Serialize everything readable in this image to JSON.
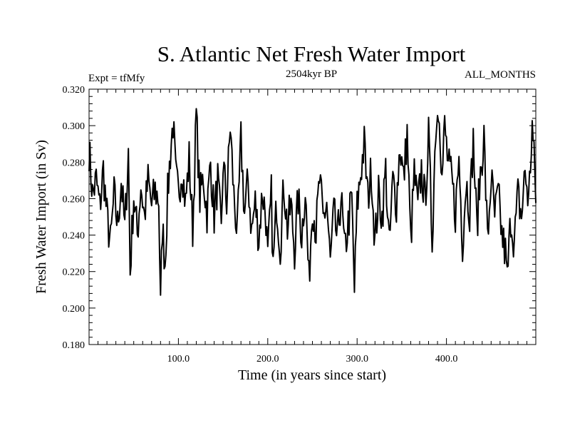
{
  "chart_data": {
    "type": "line",
    "title": "S. Atlantic Net Fresh Water Import",
    "subtitle": "2504kyr BP",
    "left_note": "Expt = tfMfy",
    "right_note": "ALL_MONTHS",
    "xlabel": "Time (in years since start)",
    "ylabel": "Fresh Water Import (in Sv)",
    "xlim": [
      0,
      500
    ],
    "ylim": [
      0.18,
      0.32
    ],
    "xticks": [
      100,
      200,
      300,
      400
    ],
    "xtick_labels": [
      "100.0",
      "200.0",
      "300.0",
      "400.0"
    ],
    "yticks": [
      0.18,
      0.2,
      0.22,
      0.24,
      0.26,
      0.28,
      0.3,
      0.32
    ],
    "ytick_labels": [
      "0.180",
      "0.200",
      "0.220",
      "0.240",
      "0.260",
      "0.280",
      "0.300",
      "0.320"
    ],
    "grid": false,
    "series": [
      {
        "name": "Net Fresh Water Import",
        "color": "#000000",
        "anchors": [
          [
            0,
            0.287
          ],
          [
            4,
            0.262
          ],
          [
            8,
            0.27
          ],
          [
            12,
            0.255
          ],
          [
            16,
            0.276
          ],
          [
            20,
            0.25
          ],
          [
            24,
            0.235
          ],
          [
            28,
            0.262
          ],
          [
            32,
            0.245
          ],
          [
            36,
            0.27
          ],
          [
            40,
            0.243
          ],
          [
            44,
            0.286
          ],
          [
            46,
            0.22
          ],
          [
            50,
            0.262
          ],
          [
            54,
            0.24
          ],
          [
            58,
            0.268
          ],
          [
            62,
            0.25
          ],
          [
            66,
            0.27
          ],
          [
            70,
            0.256
          ],
          [
            74,
            0.264
          ],
          [
            78,
            0.26
          ],
          [
            80,
            0.2
          ],
          [
            82,
            0.245
          ],
          [
            85,
            0.225
          ],
          [
            88,
            0.262
          ],
          [
            91,
            0.285
          ],
          [
            94,
            0.302
          ],
          [
            97,
            0.272
          ],
          [
            100,
            0.262
          ],
          [
            104,
            0.278
          ],
          [
            108,
            0.257
          ],
          [
            112,
            0.282
          ],
          [
            116,
            0.243
          ],
          [
            120,
            0.306
          ],
          [
            124,
            0.26
          ],
          [
            128,
            0.272
          ],
          [
            132,
            0.252
          ],
          [
            136,
            0.28
          ],
          [
            140,
            0.25
          ],
          [
            144,
            0.27
          ],
          [
            148,
            0.24
          ],
          [
            150,
            0.28
          ],
          [
            154,
            0.258
          ],
          [
            158,
            0.3
          ],
          [
            162,
            0.262
          ],
          [
            166,
            0.24
          ],
          [
            170,
            0.292
          ],
          [
            174,
            0.252
          ],
          [
            178,
            0.27
          ],
          [
            182,
            0.242
          ],
          [
            186,
            0.258
          ],
          [
            190,
            0.238
          ],
          [
            194,
            0.264
          ],
          [
            198,
            0.25
          ],
          [
            200,
            0.226
          ],
          [
            204,
            0.262
          ],
          [
            206,
            0.222
          ],
          [
            210,
            0.258
          ],
          [
            214,
            0.234
          ],
          [
            218,
            0.268
          ],
          [
            222,
            0.244
          ],
          [
            226,
            0.256
          ],
          [
            230,
            0.232
          ],
          [
            234,
            0.26
          ],
          [
            238,
            0.24
          ],
          [
            242,
            0.266
          ],
          [
            246,
            0.214
          ],
          [
            250,
            0.258
          ],
          [
            254,
            0.242
          ],
          [
            258,
            0.27
          ],
          [
            262,
            0.248
          ],
          [
            266,
            0.258
          ],
          [
            270,
            0.224
          ],
          [
            274,
            0.252
          ],
          [
            278,
            0.236
          ],
          [
            282,
            0.262
          ],
          [
            286,
            0.23
          ],
          [
            290,
            0.246
          ],
          [
            294,
            0.26
          ],
          [
            297,
            0.21
          ],
          [
            300,
            0.255
          ],
          [
            304,
            0.274
          ],
          [
            308,
            0.29
          ],
          [
            312,
            0.26
          ],
          [
            316,
            0.276
          ],
          [
            320,
            0.236
          ],
          [
            324,
            0.262
          ],
          [
            328,
            0.25
          ],
          [
            332,
            0.276
          ],
          [
            336,
            0.232
          ],
          [
            340,
            0.27
          ],
          [
            344,
            0.258
          ],
          [
            348,
            0.29
          ],
          [
            352,
            0.27
          ],
          [
            356,
            0.296
          ],
          [
            360,
            0.236
          ],
          [
            364,
            0.274
          ],
          [
            368,
            0.254
          ],
          [
            372,
            0.276
          ],
          [
            376,
            0.258
          ],
          [
            380,
            0.294
          ],
          [
            384,
            0.238
          ],
          [
            388,
            0.3
          ],
          [
            392,
            0.312
          ],
          [
            395,
            0.27
          ],
          [
            398,
            0.3
          ],
          [
            402,
            0.278
          ],
          [
            406,
            0.27
          ],
          [
            410,
            0.252
          ],
          [
            414,
            0.282
          ],
          [
            418,
            0.236
          ],
          [
            422,
            0.27
          ],
          [
            426,
            0.254
          ],
          [
            430,
            0.292
          ],
          [
            434,
            0.244
          ],
          [
            438,
            0.274
          ],
          [
            442,
            0.294
          ],
          [
            446,
            0.236
          ],
          [
            450,
            0.272
          ],
          [
            454,
            0.25
          ],
          [
            458,
            0.262
          ],
          [
            462,
            0.24
          ],
          [
            466,
            0.23
          ],
          [
            468,
            0.215
          ],
          [
            472,
            0.25
          ],
          [
            476,
            0.236
          ],
          [
            480,
            0.262
          ],
          [
            484,
            0.25
          ],
          [
            488,
            0.275
          ],
          [
            492,
            0.258
          ],
          [
            496,
            0.3
          ],
          [
            500,
            0.262
          ]
        ]
      }
    ]
  }
}
